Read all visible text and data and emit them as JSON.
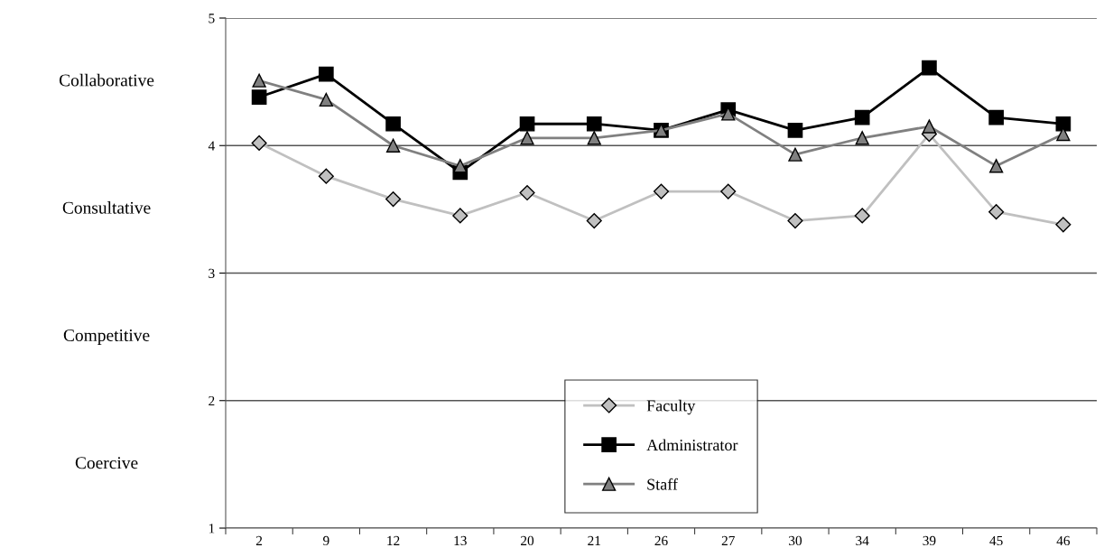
{
  "chart_data": {
    "type": "line",
    "categories": [
      "2",
      "9",
      "12",
      "13",
      "20",
      "21",
      "26",
      "27",
      "30",
      "34",
      "39",
      "45",
      "46"
    ],
    "series": [
      {
        "name": "Faculty",
        "color": "#c0c0c0",
        "marker": "diamond",
        "values": [
          4.02,
          3.76,
          3.58,
          3.45,
          3.63,
          3.41,
          3.64,
          3.64,
          3.41,
          3.45,
          4.09,
          3.48,
          3.38
        ]
      },
      {
        "name": "Administrator",
        "color": "#000000",
        "marker": "square",
        "values": [
          4.38,
          4.56,
          4.17,
          3.79,
          4.17,
          4.17,
          4.12,
          4.28,
          4.12,
          4.22,
          4.61,
          4.22,
          4.17
        ]
      },
      {
        "name": "Staff",
        "color": "#808080",
        "marker": "triangle",
        "values": [
          4.51,
          4.36,
          4.0,
          3.84,
          4.06,
          4.06,
          4.12,
          4.25,
          3.93,
          4.06,
          4.15,
          3.84,
          4.09
        ]
      }
    ],
    "ylim": [
      1,
      5
    ],
    "yticks": [
      1,
      2,
      3,
      4,
      5
    ],
    "grid": "y",
    "legend": "bottom",
    "annotations": [
      "Collaborative",
      "Consultative",
      "Competitive",
      "Coercive"
    ]
  }
}
